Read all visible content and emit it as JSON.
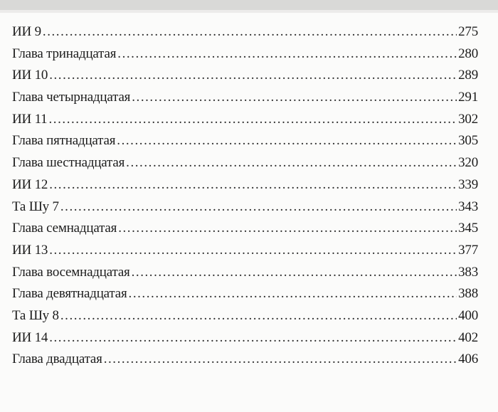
{
  "toc": {
    "entries": [
      {
        "title": "ИИ 9",
        "page": "275"
      },
      {
        "title": "Глава тринадцатая",
        "page": "280"
      },
      {
        "title": "ИИ 10",
        "page": "289"
      },
      {
        "title": "Глава четырнадцатая",
        "page": "291"
      },
      {
        "title": "ИИ 11",
        "page": "302"
      },
      {
        "title": "Глава пятнадцатая",
        "page": "305"
      },
      {
        "title": "Глава шестнадцатая",
        "page": "320"
      },
      {
        "title": "ИИ 12",
        "page": "339"
      },
      {
        "title": "Та Шу 7",
        "page": "343"
      },
      {
        "title": "Глава семнадцатая",
        "page": "345"
      },
      {
        "title": "ИИ 13",
        "page": "377"
      },
      {
        "title": "Глава восемнадцатая",
        "page": "383"
      },
      {
        "title": "Глава девятнадцатая",
        "page": "388"
      },
      {
        "title": "Та Шу 8",
        "page": "400"
      },
      {
        "title": "ИИ 14",
        "page": "402"
      },
      {
        "title": "Глава двадцатая",
        "page": "406"
      }
    ]
  }
}
